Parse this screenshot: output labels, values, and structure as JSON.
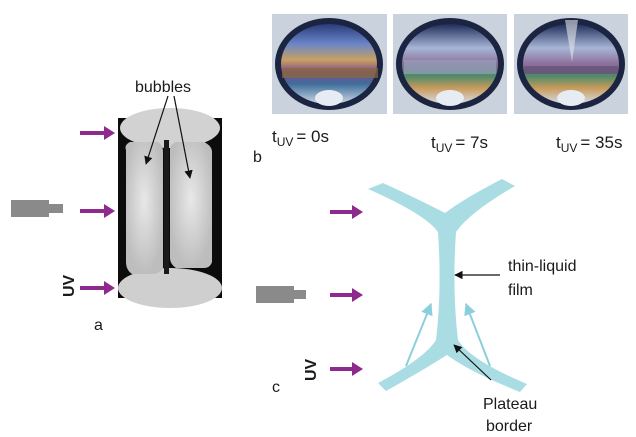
{
  "colors": {
    "arrow": "#8e2a8e",
    "plateau": "#a9dde3",
    "plateau_arrow": "#8ccfdc",
    "lamp": "#8a8a8a"
  },
  "panel_a": {
    "letter": "a",
    "bubbles_label": "bubbles",
    "uv_label": "UV"
  },
  "panel_b": {
    "letter": "b",
    "times": [
      {
        "prefix": "t",
        "sub": "UV",
        "value": "= 0s"
      },
      {
        "prefix": "t",
        "sub": "UV",
        "value": "= 7s"
      },
      {
        "prefix": "t",
        "sub": "UV",
        "value": "= 35s"
      }
    ]
  },
  "panel_c": {
    "letter": "c",
    "uv_label": "UV",
    "film_label_line1": "thin-liquid",
    "film_label_line2": "film",
    "plateau_label_line1": "Plateau",
    "plateau_label_line2": "border"
  }
}
